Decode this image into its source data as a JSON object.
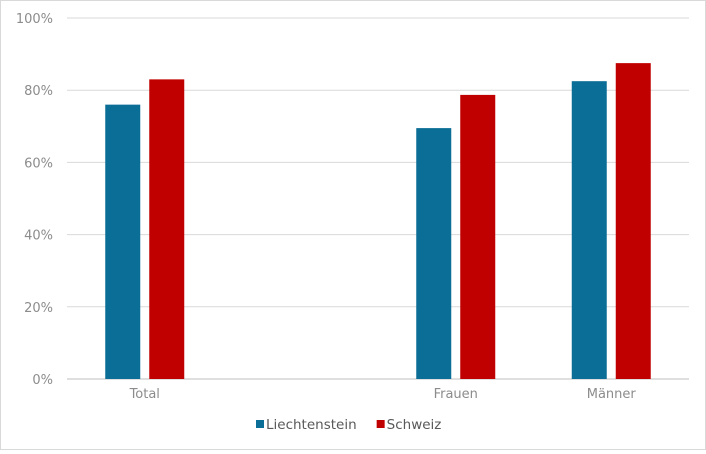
{
  "chart_data": {
    "type": "bar",
    "categories": [
      "Total",
      "",
      "Frauen",
      "Männer"
    ],
    "series": [
      {
        "name": "Liechtenstein",
        "color": "#0b6e96",
        "values": [
          0.76,
          null,
          0.695,
          0.825
        ]
      },
      {
        "name": "Schweiz",
        "color": "#c00000",
        "values": [
          0.83,
          null,
          0.787,
          0.875
        ]
      }
    ],
    "ylim": [
      0,
      1
    ],
    "yticks": [
      0,
      0.2,
      0.4,
      0.6,
      0.8,
      1.0
    ],
    "ytick_labels": [
      "0%",
      "20%",
      "40%",
      "60%",
      "80%",
      "100%"
    ],
    "grid": true,
    "legend_position": "bottom"
  }
}
